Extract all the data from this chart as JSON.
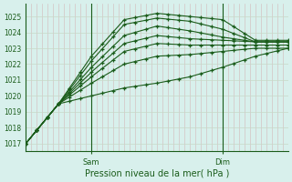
{
  "xlabel": "Pression niveau de la mer( hPa )",
  "bg_color": "#d8f0ec",
  "grid_color_h": "#c8d8c8",
  "grid_color_v": "#d4b8b8",
  "line_color": "#1a5c1a",
  "axis_color": "#1a5c1a",
  "text_color": "#1a5c1a",
  "ylim": [
    1016.5,
    1025.8
  ],
  "xlim": [
    0,
    96
  ],
  "yticks": [
    1017,
    1018,
    1019,
    1020,
    1021,
    1022,
    1023,
    1024,
    1025
  ],
  "sam_x": 24,
  "dim_x": 72,
  "n_steps": 97,
  "series": [
    [
      1017.0,
      1019.5,
      1022.5,
      1024.8,
      1025.2,
      1025.0,
      1024.8,
      1023.5,
      1023.5
    ],
    [
      1017.0,
      1019.5,
      1022.2,
      1024.5,
      1024.9,
      1024.7,
      1024.2,
      1023.4,
      1023.4
    ],
    [
      1017.0,
      1019.5,
      1021.8,
      1023.8,
      1024.4,
      1024.1,
      1023.7,
      1023.4,
      1023.4
    ],
    [
      1017.0,
      1019.5,
      1021.5,
      1023.3,
      1023.8,
      1023.6,
      1023.5,
      1023.4,
      1023.4
    ],
    [
      1017.0,
      1019.5,
      1021.2,
      1022.8,
      1023.3,
      1023.2,
      1023.2,
      1023.2,
      1023.2
    ],
    [
      1017.0,
      1019.5,
      1020.8,
      1022.0,
      1022.5,
      1022.6,
      1022.8,
      1023.0,
      1023.0
    ],
    [
      1017.0,
      1019.5,
      1020.0,
      1020.5,
      1020.8,
      1021.2,
      1021.8,
      1022.5,
      1023.0
    ]
  ],
  "series_x": [
    0,
    12,
    24,
    36,
    48,
    60,
    72,
    84,
    96
  ]
}
